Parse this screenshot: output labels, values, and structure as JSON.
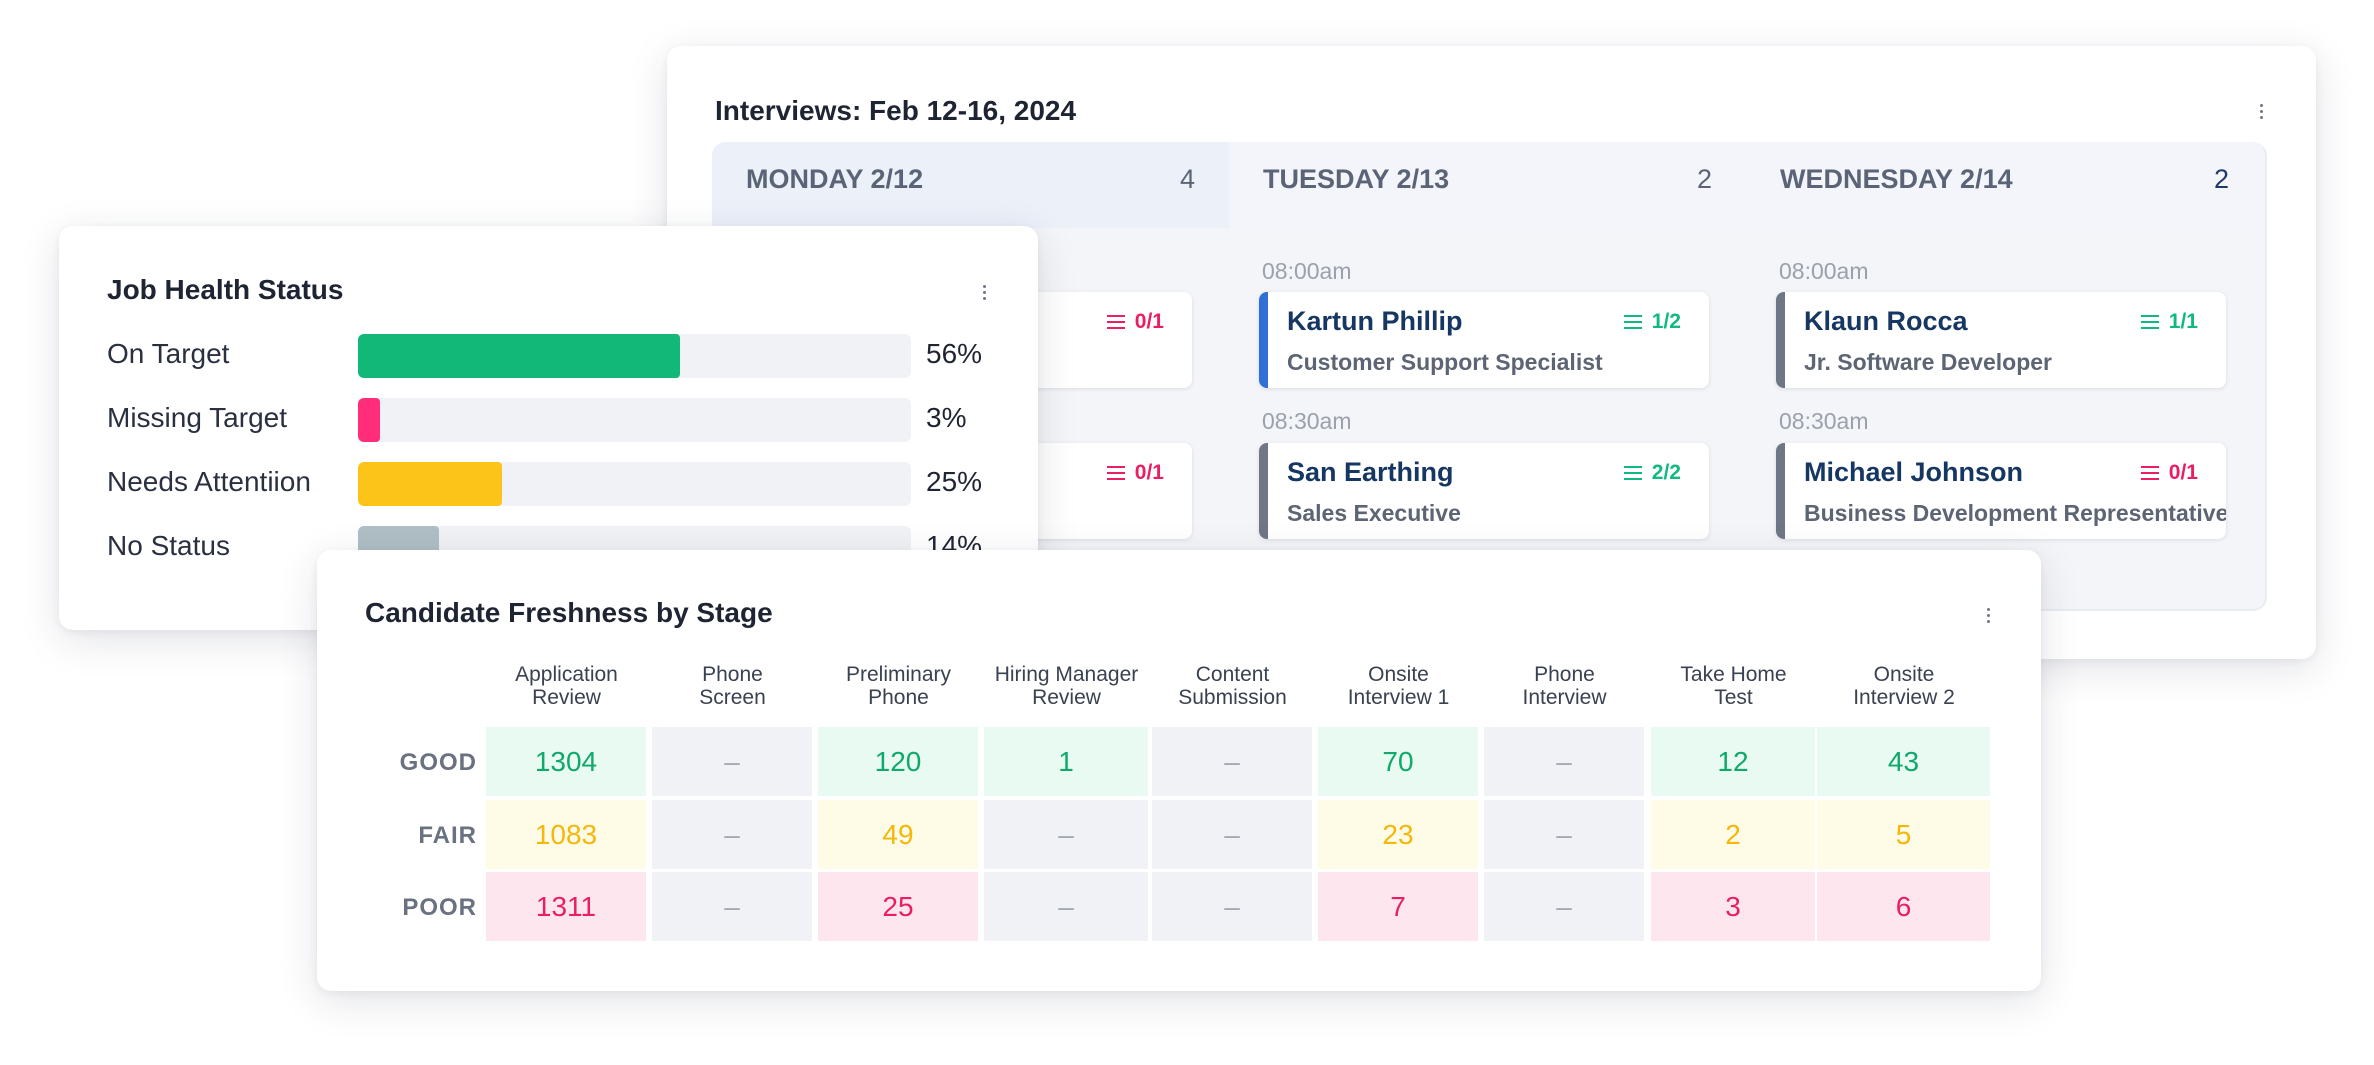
{
  "interviews": {
    "title": "Interviews: Feb 12-16, 2024",
    "days": [
      {
        "name": "MONDAY 2/12",
        "count": "4",
        "slots": [
          {
            "time": "",
            "name": "",
            "role": "",
            "score": "0/1",
            "score_color": "#e91e63",
            "bar_color": "#6f7787"
          },
          {
            "time": "",
            "name": "",
            "role": "",
            "score": "0/1",
            "score_color": "#e91e63",
            "bar_color": "#6f7787"
          }
        ]
      },
      {
        "name": "TUESDAY 2/13",
        "count": "2",
        "slots": [
          {
            "time": "08:00am",
            "name": "Kartun Phillip",
            "role": "Customer Support Specialist",
            "score": "1/2",
            "score_color": "#10b981",
            "bar_color": "#2f6fd6"
          },
          {
            "time": "08:30am",
            "name": "San Earthing",
            "role": "Sales Executive",
            "score": "2/2",
            "score_color": "#10b981",
            "bar_color": "#6f7787"
          }
        ]
      },
      {
        "name": "WEDNESDAY 2/14",
        "count": "2",
        "slots": [
          {
            "time": "08:00am",
            "name": "Klaun Rocca",
            "role": "Jr. Software Developer",
            "score": "1/1",
            "score_color": "#10b981",
            "bar_color": "#6f7787"
          },
          {
            "time": "08:30am",
            "name": "Michael Johnson",
            "role": "Business Development Representative",
            "score": "0/1",
            "score_color": "#e91e63",
            "bar_color": "#6f7787"
          }
        ]
      }
    ]
  },
  "job_health": {
    "title": "Job Health Status",
    "rows": [
      {
        "label": "On Target",
        "pct": "56%",
        "value": 56,
        "color": "#12b878"
      },
      {
        "label": "Missing Target",
        "pct": "3%",
        "value": 3,
        "color": "#ff2d7a"
      },
      {
        "label": "Needs Attentiion",
        "pct": "25%",
        "value": 25,
        "color": "#fcc419"
      },
      {
        "label": "No Status",
        "pct": "14%",
        "value": 14,
        "color": "#b0bec5"
      }
    ]
  },
  "freshness": {
    "title": "Candidate Freshness by Stage",
    "stages": [
      "Application Review",
      "Phone Screen",
      "Preliminary Phone",
      "Hiring Manager Review",
      "Content Submission",
      "Onsite Interview 1",
      "Phone Interview",
      "Take Home Test",
      "Onsite Interview 2"
    ],
    "stage_lines": [
      [
        "Application",
        "Review"
      ],
      [
        "Phone",
        "Screen"
      ],
      [
        "Preliminary",
        "Phone"
      ],
      [
        "Hiring Manager",
        "Review"
      ],
      [
        "Content",
        "Submission"
      ],
      [
        "Onsite",
        "Interview 1"
      ],
      [
        "Phone",
        "Interview"
      ],
      [
        "Take Home",
        "Test"
      ],
      [
        "Onsite",
        "Interview 2"
      ]
    ],
    "rows": [
      {
        "label": "GOOD",
        "text_color": "#10a86b",
        "bg": "#e8faf1",
        "values": [
          "1304",
          "–",
          "120",
          "1",
          "–",
          "70",
          "–",
          "12",
          "43"
        ]
      },
      {
        "label": "FAIR",
        "text_color": "#f5b70a",
        "bg": "#fefbe6",
        "values": [
          "1083",
          "–",
          "49",
          "–",
          "–",
          "23",
          "–",
          "2",
          "5"
        ]
      },
      {
        "label": "POOR",
        "text_color": "#e91e63",
        "bg": "#fde6ee",
        "values": [
          "1311",
          "–",
          "25",
          "–",
          "–",
          "7",
          "–",
          "3",
          "6"
        ]
      }
    ],
    "empty_bg": "#f1f2f5",
    "empty_color": "#a3a9b4"
  }
}
